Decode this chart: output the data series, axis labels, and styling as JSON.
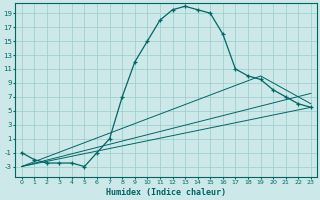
{
  "xlabel": "Humidex (Indice chaleur)",
  "bg_color": "#cce8e8",
  "grid_color": "#99cccc",
  "line_color": "#006666",
  "xlim": [
    -0.5,
    23.5
  ],
  "ylim": [
    -4.5,
    20.5
  ],
  "xticks": [
    0,
    1,
    2,
    3,
    4,
    5,
    6,
    7,
    8,
    9,
    10,
    11,
    12,
    13,
    14,
    15,
    16,
    17,
    18,
    19,
    20,
    21,
    22,
    23
  ],
  "yticks": [
    -3,
    -1,
    1,
    3,
    5,
    7,
    9,
    11,
    13,
    15,
    17,
    19
  ],
  "line1_x": [
    0,
    1,
    2,
    3,
    4,
    5,
    6,
    7,
    8,
    9,
    10,
    11,
    12,
    13,
    14,
    15,
    16,
    17,
    18,
    19,
    20,
    21,
    22,
    23
  ],
  "line1_y": [
    -1,
    -2,
    -2.5,
    -2.5,
    -2.5,
    -3,
    -1,
    1,
    7,
    12,
    15,
    18,
    19.5,
    20,
    19.5,
    19,
    16,
    11,
    10,
    9.5,
    8,
    7,
    6,
    5.5
  ],
  "line2_x": [
    0,
    23
  ],
  "line2_y": [
    -3,
    5.5
  ],
  "line3_x": [
    0,
    23
  ],
  "line3_y": [
    -3,
    7.5
  ],
  "line4_x": [
    0,
    19,
    23
  ],
  "line4_y": [
    -3,
    10,
    6
  ]
}
